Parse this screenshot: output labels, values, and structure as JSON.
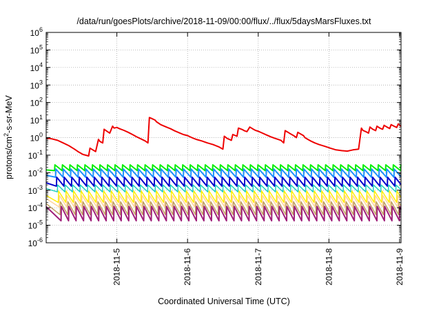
{
  "chart_data": {
    "type": "line",
    "title": "/data/run/goesPlots/archive/2018-11-09/00:00/flux/../flux/5daysMarsFluxes.txt",
    "xlabel": "Coordinated Universal Time (UTC)",
    "ylabel_base": "protons/cm",
    "ylabel_sup": "2",
    "ylabel_rest": "-s-sr-MeV",
    "y_scale": "log",
    "ylim_exp": [
      -6,
      6
    ],
    "yticks": [
      {
        "base": "10",
        "exp": "6",
        "value": 6
      },
      {
        "base": "10",
        "exp": "5",
        "value": 5
      },
      {
        "base": "10",
        "exp": "4",
        "value": 4
      },
      {
        "base": "10",
        "exp": "3",
        "value": 3
      },
      {
        "base": "10",
        "exp": "2",
        "value": 2
      },
      {
        "base": "10",
        "exp": "1",
        "value": 1
      },
      {
        "base": "10",
        "exp": "0",
        "value": 0
      },
      {
        "base": "10",
        "exp": "-1",
        "value": -1
      },
      {
        "base": "10",
        "exp": "-2",
        "value": -2
      },
      {
        "base": "10",
        "exp": "-3",
        "value": -3
      },
      {
        "base": "10",
        "exp": "-4",
        "value": -4
      },
      {
        "base": "10",
        "exp": "-5",
        "value": -5
      },
      {
        "base": "10",
        "exp": "-6",
        "value": -6
      }
    ],
    "xlim": [
      4.0,
      9.02
    ],
    "xticks": [
      {
        "label": "2018-11-5",
        "value": 5
      },
      {
        "label": "2018-11-6",
        "value": 6
      },
      {
        "label": "2018-11-7",
        "value": 7
      },
      {
        "label": "2018-11-8",
        "value": 8
      },
      {
        "label": "2018-11-9",
        "value": 9
      }
    ],
    "grid": true,
    "series": [
      {
        "color": "#ee0000",
        "width": 2,
        "x": [
          4.0,
          4.08,
          4.16,
          4.24,
          4.32,
          4.4,
          4.46,
          4.52,
          4.6,
          4.62,
          4.66,
          4.7,
          4.74,
          4.76,
          4.8,
          4.82,
          4.86,
          4.9,
          4.94,
          4.96,
          5.0,
          5.04,
          5.1,
          5.16,
          5.22,
          5.28,
          5.34,
          5.4,
          5.44,
          5.46,
          5.5,
          5.54,
          5.56,
          5.62,
          5.7,
          5.76,
          5.82,
          5.88,
          5.94,
          6.0,
          6.06,
          6.12,
          6.2,
          6.28,
          6.36,
          6.44,
          6.5,
          6.52,
          6.56,
          6.62,
          6.64,
          6.7,
          6.72,
          6.78,
          6.8,
          6.84,
          6.88,
          6.92,
          6.96,
          7.0,
          7.06,
          7.12,
          7.18,
          7.24,
          7.32,
          7.36,
          7.38,
          7.42,
          7.46,
          7.5,
          7.54,
          7.56,
          7.6,
          7.64,
          7.66,
          7.7,
          7.74,
          7.8,
          7.86,
          7.94,
          8.02,
          8.1,
          8.18,
          8.26,
          8.34,
          8.42,
          8.46,
          8.48,
          8.52,
          8.56,
          8.58,
          8.62,
          8.66,
          8.68,
          8.72,
          8.76,
          8.78,
          8.82,
          8.86,
          8.88,
          8.92,
          8.96,
          8.98,
          9.02
        ],
        "y": [
          0.95,
          0.85,
          0.7,
          0.5,
          0.35,
          0.22,
          0.15,
          0.11,
          0.09,
          0.25,
          0.2,
          0.16,
          0.8,
          0.6,
          0.5,
          3.0,
          2.3,
          1.8,
          4.5,
          3.5,
          3.8,
          3.2,
          2.6,
          2.0,
          1.5,
          1.1,
          0.85,
          0.65,
          0.5,
          14.0,
          12.0,
          10.0,
          8.0,
          5.5,
          4.0,
          3.2,
          2.4,
          1.9,
          1.5,
          1.3,
          1.0,
          0.8,
          0.65,
          0.5,
          0.4,
          0.3,
          0.22,
          1.2,
          0.9,
          0.7,
          1.5,
          1.2,
          3.5,
          2.8,
          2.5,
          2.2,
          4.0,
          3.2,
          2.6,
          2.3,
          1.8,
          1.4,
          1.1,
          0.9,
          0.7,
          0.5,
          2.5,
          2.0,
          1.6,
          1.3,
          1.0,
          2.0,
          1.6,
          1.3,
          1.0,
          0.8,
          0.65,
          0.5,
          0.4,
          0.32,
          0.25,
          0.2,
          0.18,
          0.17,
          0.2,
          0.22,
          3.5,
          2.6,
          2.2,
          1.8,
          4.0,
          3.0,
          2.5,
          4.5,
          3.5,
          3.0,
          5.0,
          4.0,
          3.3,
          5.5,
          4.5,
          3.8,
          6.0,
          4.5
        ]
      },
      {
        "color": "#00ee00",
        "width": 2,
        "top": 0.028,
        "bottom": 0.013
      },
      {
        "color": "#1e90ff",
        "width": 2,
        "top": 0.016,
        "bottom": 0.0055
      },
      {
        "color": "#0000cc",
        "width": 2,
        "top": 0.0055,
        "bottom": 0.0017
      },
      {
        "color": "#20d0c0",
        "width": 1.5,
        "top": 0.002,
        "bottom": 0.0008
      },
      {
        "color": "#ffee00",
        "width": 1.5,
        "top": 0.0009,
        "bottom": 0.0002
      },
      {
        "color": "#ffd39b",
        "width": 1.5,
        "top": 0.0005,
        "bottom": 0.00011
      },
      {
        "color": "#c0a060",
        "width": 1.5,
        "top": 0.00022,
        "bottom": 4e-05
      },
      {
        "color": "#a0207a",
        "width": 2,
        "top": 0.00012,
        "bottom": 1.8e-05
      }
    ],
    "cycles_per_day": 9.4
  }
}
